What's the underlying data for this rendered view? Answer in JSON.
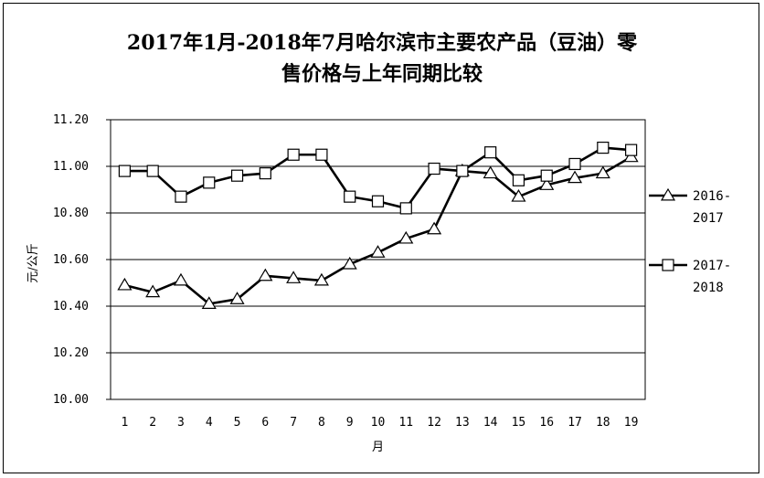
{
  "chart_data": {
    "type": "line",
    "title_line1": "2017年1月-2018年7月哈尔滨市主要农产品（豆油）零",
    "title_line2": "售价格与上年同期比较",
    "xlabel": "月",
    "ylabel": "元/公斤",
    "ylim": [
      10.0,
      11.2
    ],
    "yticks": [
      "10.00",
      "10.20",
      "10.40",
      "10.60",
      "10.80",
      "11.00",
      "11.20"
    ],
    "ytick_values": [
      10.0,
      10.2,
      10.4,
      10.6,
      10.8,
      11.0,
      11.2
    ],
    "categories": [
      "1",
      "2",
      "3",
      "4",
      "5",
      "6",
      "7",
      "8",
      "9",
      "10",
      "11",
      "12",
      "13",
      "14",
      "15",
      "16",
      "17",
      "18",
      "19"
    ],
    "grid": true,
    "legend_position": "right",
    "series": [
      {
        "name_line1": "2016-",
        "name_line2": "2017",
        "marker": "triangle",
        "values": [
          10.49,
          10.46,
          10.51,
          10.41,
          10.43,
          10.53,
          10.52,
          10.51,
          10.58,
          10.63,
          10.69,
          10.73,
          10.98,
          10.97,
          10.87,
          10.92,
          10.95,
          10.97,
          11.04
        ]
      },
      {
        "name_line1": "2017-",
        "name_line2": "2018",
        "marker": "square",
        "values": [
          10.98,
          10.98,
          10.87,
          10.93,
          10.96,
          10.97,
          11.05,
          11.05,
          10.87,
          10.85,
          10.82,
          10.99,
          10.98,
          11.06,
          10.94,
          10.96,
          11.01,
          11.08,
          11.07
        ]
      }
    ]
  }
}
